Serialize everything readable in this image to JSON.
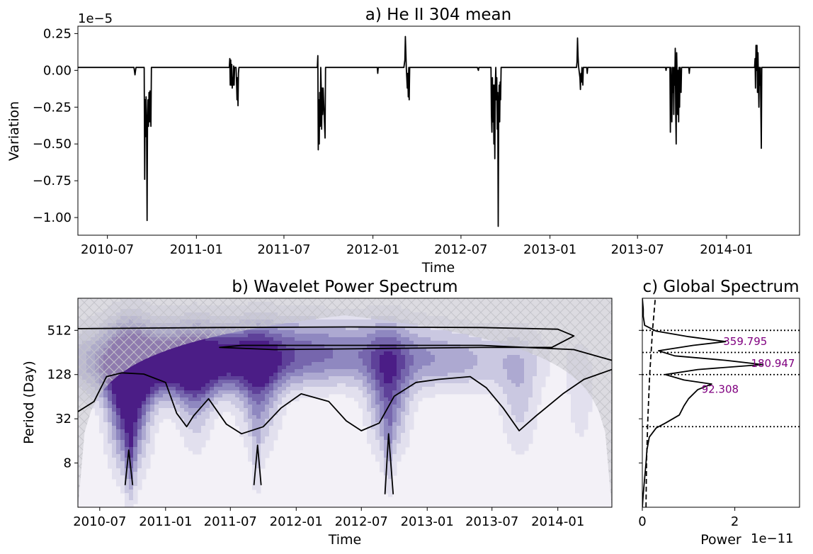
{
  "chart_data": [
    {
      "id": "a",
      "type": "line",
      "title": "a) He II 304 mean",
      "xlabel": "Time",
      "ylabel": "Variation",
      "offset_text": "1e−5",
      "xlim": [
        "2010-05-01",
        "2014-06-01"
      ],
      "ylim": [
        -1.12,
        0.3
      ],
      "x_ticks": [
        "2010-07",
        "2011-01",
        "2011-07",
        "2012-01",
        "2012-07",
        "2013-01",
        "2013-07",
        "2014-01"
      ],
      "y_ticks": [
        0.25,
        0.0,
        -0.25,
        -0.5,
        -0.75,
        -1.0
      ],
      "y_tick_labels": [
        "0.25",
        "0.00",
        "−0.25",
        "−0.50",
        "−0.75",
        "−1.00"
      ],
      "baseline": 0.02,
      "series": [
        {
          "color": "#000000",
          "points": [
            [
              "2010-05-01",
              0.02
            ],
            [
              "2010-08-25",
              0.02
            ],
            [
              "2010-08-27",
              -0.03
            ],
            [
              "2010-08-29",
              0.02
            ],
            [
              "2010-09-15",
              0.02
            ],
            [
              "2010-09-16",
              -0.74
            ],
            [
              "2010-09-17",
              -0.2
            ],
            [
              "2010-09-18",
              -0.45
            ],
            [
              "2010-09-19",
              -0.18
            ],
            [
              "2010-09-20",
              -0.4
            ],
            [
              "2010-09-21",
              -1.02
            ],
            [
              "2010-09-22",
              -0.35
            ],
            [
              "2010-09-23",
              -0.2
            ],
            [
              "2010-09-24",
              -0.38
            ],
            [
              "2010-09-25",
              -0.15
            ],
            [
              "2010-09-26",
              -0.35
            ],
            [
              "2010-09-27",
              -0.14
            ],
            [
              "2010-09-29",
              -0.38
            ],
            [
              "2010-09-30",
              0.02
            ],
            [
              "2011-03-10",
              0.02
            ],
            [
              "2011-03-11",
              0.08
            ],
            [
              "2011-03-12",
              -0.1
            ],
            [
              "2011-03-13",
              0.07
            ],
            [
              "2011-03-14",
              -0.1
            ],
            [
              "2011-03-15",
              0.04
            ],
            [
              "2011-03-16",
              -0.12
            ],
            [
              "2011-03-17",
              -0.05
            ],
            [
              "2011-03-18",
              -0.1
            ],
            [
              "2011-03-19",
              0.03
            ],
            [
              "2011-03-20",
              -0.1
            ],
            [
              "2011-03-21",
              0.02
            ],
            [
              "2011-03-24",
              0.02
            ],
            [
              "2011-03-25",
              -0.08
            ],
            [
              "2011-03-26",
              -0.2
            ],
            [
              "2011-03-27",
              -0.05
            ],
            [
              "2011-03-28",
              -0.24
            ],
            [
              "2011-03-29",
              -0.02
            ],
            [
              "2011-03-30",
              0.02
            ],
            [
              "2011-09-08",
              0.02
            ],
            [
              "2011-09-09",
              0.1
            ],
            [
              "2011-09-10",
              -0.54
            ],
            [
              "2011-09-11",
              -0.2
            ],
            [
              "2011-09-12",
              -0.5
            ],
            [
              "2011-09-13",
              -0.15
            ],
            [
              "2011-09-14",
              -0.38
            ],
            [
              "2011-09-15",
              0.02
            ],
            [
              "2011-09-16",
              -0.1
            ],
            [
              "2011-09-17",
              -0.4
            ],
            [
              "2011-09-18",
              -0.12
            ],
            [
              "2011-09-19",
              -0.3
            ],
            [
              "2011-09-20",
              -0.12
            ],
            [
              "2011-09-22",
              -0.28
            ],
            [
              "2011-09-24",
              -0.46
            ],
            [
              "2011-09-25",
              0.02
            ],
            [
              "2012-01-10",
              0.02
            ],
            [
              "2012-01-11",
              -0.02
            ],
            [
              "2012-01-12",
              0.02
            ],
            [
              "2012-03-05",
              0.02
            ],
            [
              "2012-03-07",
              0.07
            ],
            [
              "2012-03-08",
              0.23
            ],
            [
              "2012-03-09",
              0.12
            ],
            [
              "2012-03-10",
              0.02
            ],
            [
              "2012-03-12",
              -0.12
            ],
            [
              "2012-03-13",
              -0.02
            ],
            [
              "2012-03-14",
              -0.18
            ],
            [
              "2012-03-15",
              0.02
            ],
            [
              "2012-03-16",
              -0.2
            ],
            [
              "2012-03-17",
              0.02
            ],
            [
              "2012-08-01",
              0.02
            ],
            [
              "2012-08-04",
              0.02
            ],
            [
              "2012-08-06",
              0.0
            ],
            [
              "2012-08-07",
              0.02
            ],
            [
              "2012-09-01",
              0.02
            ],
            [
              "2012-09-02",
              -0.3
            ],
            [
              "2012-09-03",
              -0.42
            ],
            [
              "2012-09-04",
              -0.05
            ],
            [
              "2012-09-05",
              -0.35
            ],
            [
              "2012-09-06",
              -0.1
            ],
            [
              "2012-09-07",
              -0.5
            ],
            [
              "2012-09-08",
              -0.1
            ],
            [
              "2012-09-09",
              -0.6
            ],
            [
              "2012-09-10",
              -0.1
            ],
            [
              "2012-09-11",
              0.02
            ],
            [
              "2012-09-12",
              -0.2
            ],
            [
              "2012-09-13",
              -0.05
            ],
            [
              "2012-09-14",
              -0.4
            ],
            [
              "2012-09-15",
              -0.15
            ],
            [
              "2012-09-16",
              -1.06
            ],
            [
              "2012-09-17",
              -0.3
            ],
            [
              "2012-09-18",
              -0.1
            ],
            [
              "2012-09-19",
              -0.35
            ],
            [
              "2012-09-20",
              -0.08
            ],
            [
              "2012-09-21",
              -0.2
            ],
            [
              "2012-09-22",
              0.02
            ],
            [
              "2013-02-25",
              0.02
            ],
            [
              "2013-02-26",
              0.06
            ],
            [
              "2013-02-27",
              0.22
            ],
            [
              "2013-02-28",
              0.1
            ],
            [
              "2013-03-01",
              0.03
            ],
            [
              "2013-03-04",
              -0.05
            ],
            [
              "2013-03-05",
              -0.13
            ],
            [
              "2013-03-06",
              -0.02
            ],
            [
              "2013-03-07",
              -0.08
            ],
            [
              "2013-03-08",
              0.02
            ],
            [
              "2013-03-10",
              -0.1
            ],
            [
              "2013-03-11",
              0.02
            ],
            [
              "2013-03-18",
              0.02
            ],
            [
              "2013-03-19",
              -0.02
            ],
            [
              "2013-03-20",
              0.02
            ],
            [
              "2013-08-28",
              0.02
            ],
            [
              "2013-08-29",
              0.0
            ],
            [
              "2013-08-30",
              0.02
            ],
            [
              "2013-09-06",
              0.02
            ],
            [
              "2013-09-07",
              -0.42
            ],
            [
              "2013-09-08",
              0.02
            ],
            [
              "2013-09-10",
              -0.35
            ],
            [
              "2013-09-11",
              0.02
            ],
            [
              "2013-09-12",
              -0.15
            ],
            [
              "2013-09-13",
              0.02
            ],
            [
              "2013-09-14",
              -0.3
            ],
            [
              "2013-09-15",
              0.02
            ],
            [
              "2013-09-16",
              -0.1
            ],
            [
              "2013-09-17",
              0.15
            ],
            [
              "2013-09-18",
              -0.3
            ],
            [
              "2013-09-19",
              -0.5
            ],
            [
              "2013-09-20",
              0.12
            ],
            [
              "2013-09-21",
              -0.05
            ],
            [
              "2013-09-22",
              -0.3
            ],
            [
              "2013-09-23",
              0.0
            ],
            [
              "2013-09-24",
              -0.35
            ],
            [
              "2013-09-25",
              0.02
            ],
            [
              "2013-09-26",
              -0.25
            ],
            [
              "2013-09-27",
              0.02
            ],
            [
              "2013-09-29",
              -0.15
            ],
            [
              "2013-09-30",
              0.02
            ],
            [
              "2013-10-15",
              0.02
            ],
            [
              "2013-10-16",
              -0.02
            ],
            [
              "2013-10-17",
              0.02
            ],
            [
              "2014-02-28",
              0.02
            ],
            [
              "2014-03-01",
              0.08
            ],
            [
              "2014-03-02",
              -0.12
            ],
            [
              "2014-03-03",
              0.17
            ],
            [
              "2014-03-04",
              0.0
            ],
            [
              "2014-03-05",
              0.17
            ],
            [
              "2014-03-06",
              -0.15
            ],
            [
              "2014-03-07",
              0.12
            ],
            [
              "2014-03-08",
              -0.05
            ],
            [
              "2014-03-09",
              -0.25
            ],
            [
              "2014-03-10",
              0.02
            ],
            [
              "2014-03-11",
              -0.1
            ],
            [
              "2014-03-12",
              0.02
            ],
            [
              "2014-03-14",
              -0.53
            ],
            [
              "2014-03-15",
              0.02
            ],
            [
              "2014-06-01",
              0.02
            ]
          ]
        }
      ]
    },
    {
      "id": "b",
      "type": "heatmap",
      "title": "b) Wavelet Power Spectrum",
      "xlabel": "Time",
      "ylabel": "Period (Day)",
      "y_scale": "log2",
      "xlim": [
        "2010-05-01",
        "2014-06-01"
      ],
      "ylim": [
        2,
        1400
      ],
      "x_ticks": [
        "2010-07",
        "2011-01",
        "2011-07",
        "2012-01",
        "2012-07",
        "2013-01",
        "2013-07",
        "2014-01"
      ],
      "x_tick_positions": [
        "2010-07-01",
        "2011-01-01",
        "2011-07-01",
        "2012-01-01",
        "2012-07-01",
        "2013-01-01",
        "2013-07-01",
        "2014-01-01"
      ],
      "y_ticks": [
        8,
        32,
        128,
        512
      ],
      "colormap": "Purples",
      "cone_of_influence": "hatched",
      "power_blobs": [
        {
          "t": "2010-09-20",
          "period": 60,
          "sigma_t": 40,
          "sigma_p": 0.35,
          "amp": 1.0
        },
        {
          "t": "2010-11-20",
          "period": 170,
          "sigma_t": 150,
          "sigma_p": 0.18,
          "amp": 0.7
        },
        {
          "t": "2011-06-20",
          "period": 170,
          "sigma_t": 200,
          "sigma_p": 0.15,
          "amp": 0.4
        },
        {
          "t": "2011-12-01",
          "period": 300,
          "sigma_t": 360,
          "sigma_p": 0.18,
          "amp": 0.55
        },
        {
          "t": "2011-03-25",
          "period": 70,
          "sigma_t": 35,
          "sigma_p": 0.3,
          "amp": 0.4
        },
        {
          "t": "2011-09-20",
          "period": 70,
          "sigma_t": 40,
          "sigma_p": 0.3,
          "amp": 0.5
        },
        {
          "t": "2012-09-15",
          "period": 65,
          "sigma_t": 40,
          "sigma_p": 0.3,
          "amp": 0.65
        },
        {
          "t": "2013-09-15",
          "period": 60,
          "sigma_t": 40,
          "sigma_p": 0.32,
          "amp": 0.3
        },
        {
          "t": "2013-02-15",
          "period": 170,
          "sigma_t": 170,
          "sigma_p": 0.15,
          "amp": 0.28
        },
        {
          "t": "2014-03-05",
          "period": 60,
          "sigma_t": 30,
          "sigma_p": 0.3,
          "amp": 0.2
        },
        {
          "t": "2010-09-25",
          "period": 9,
          "sigma_t": 10,
          "sigma_p": 0.25,
          "amp": 0.35
        },
        {
          "t": "2012-09-15",
          "period": 10,
          "sigma_t": 10,
          "sigma_p": 0.25,
          "amp": 0.25
        },
        {
          "t": "2011-09-12",
          "period": 9,
          "sigma_t": 10,
          "sigma_p": 0.25,
          "amp": 0.2
        }
      ]
    },
    {
      "id": "c",
      "type": "line",
      "title": "c) Global Spectrum",
      "xlabel": "Power",
      "offset_text": "1e−11",
      "x_scale": "linear",
      "y_scale": "log2",
      "xlim": [
        0,
        3.4
      ],
      "ylim": [
        2,
        1400
      ],
      "x_ticks": [
        0,
        2
      ],
      "y_ticks": [
        8,
        32,
        128,
        512
      ],
      "spectrum": [
        [
          0.0,
          2
        ],
        [
          0.02,
          3
        ],
        [
          0.05,
          5
        ],
        [
          0.08,
          8
        ],
        [
          0.1,
          12
        ],
        [
          0.15,
          18
        ],
        [
          0.3,
          24
        ],
        [
          0.5,
          28
        ],
        [
          0.8,
          36
        ],
        [
          0.9,
          48
        ],
        [
          1.0,
          60
        ],
        [
          1.2,
          80
        ],
        [
          1.5,
          95
        ],
        [
          0.9,
          108
        ],
        [
          0.5,
          128
        ],
        [
          1.2,
          150
        ],
        [
          2.6,
          175
        ],
        [
          1.8,
          200
        ],
        [
          0.7,
          230
        ],
        [
          0.35,
          270
        ],
        [
          1.1,
          320
        ],
        [
          1.8,
          360
        ],
        [
          1.0,
          420
        ],
        [
          0.3,
          500
        ],
        [
          0.05,
          600
        ],
        [
          0.02,
          800
        ],
        [
          0.02,
          1000
        ],
        [
          0.0,
          1400
        ]
      ],
      "significance": [
        [
          0.08,
          2
        ],
        [
          0.09,
          8
        ],
        [
          0.12,
          32
        ],
        [
          0.16,
          128
        ],
        [
          0.22,
          512
        ],
        [
          0.28,
          1400
        ]
      ],
      "peaks": [
        {
          "period": 359.795,
          "label": "359.795"
        },
        {
          "period": 180.947,
          "label": "180.947"
        },
        {
          "period": 92.308,
          "label": "92.308"
        }
      ],
      "reference_lines": [
        512,
        256,
        128,
        25
      ]
    }
  ]
}
